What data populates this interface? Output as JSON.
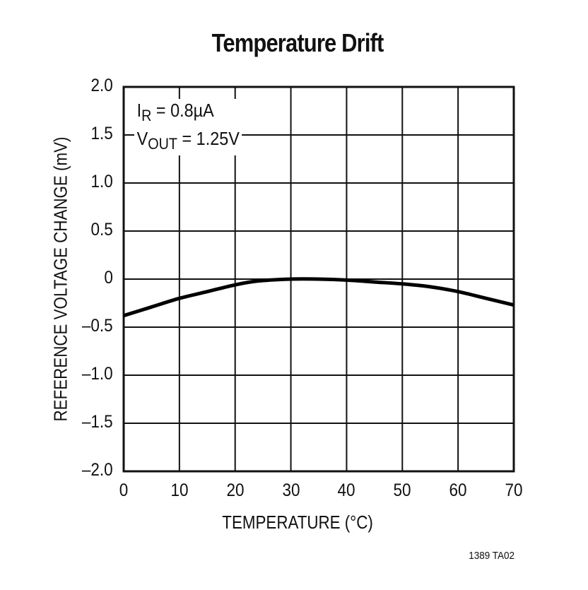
{
  "chart_data": {
    "type": "line",
    "title": "Temperature Drift",
    "xlabel": "TEMPERATURE (°C)",
    "ylabel": "REFERENCE VOLTAGE CHANGE (mV)",
    "xlim": [
      0,
      70
    ],
    "ylim": [
      -2.0,
      2.0
    ],
    "x_ticks": [
      "0",
      "10",
      "20",
      "30",
      "40",
      "50",
      "60",
      "70"
    ],
    "y_ticks": [
      "2.0",
      "1.5",
      "1.0",
      "0.5",
      "0",
      "–0.5",
      "–1.0",
      "–1.5",
      "–2.0"
    ],
    "grid": true,
    "annotations": [
      {
        "main": "I",
        "sub": "R",
        "rest": " = 0.8µA"
      },
      {
        "main": "V",
        "sub": "OUT",
        "rest": " = 1.25V"
      }
    ],
    "series": [
      {
        "name": "Reference voltage change",
        "x": [
          0,
          5,
          10,
          15,
          20,
          24,
          30,
          35,
          40,
          45,
          50,
          55,
          60,
          65,
          70
        ],
        "values": [
          -0.38,
          -0.29,
          -0.2,
          -0.13,
          -0.06,
          -0.02,
          0.0,
          0.0,
          -0.01,
          -0.03,
          -0.05,
          -0.08,
          -0.13,
          -0.2,
          -0.27
        ]
      }
    ],
    "footnote": "1389 TA02"
  }
}
